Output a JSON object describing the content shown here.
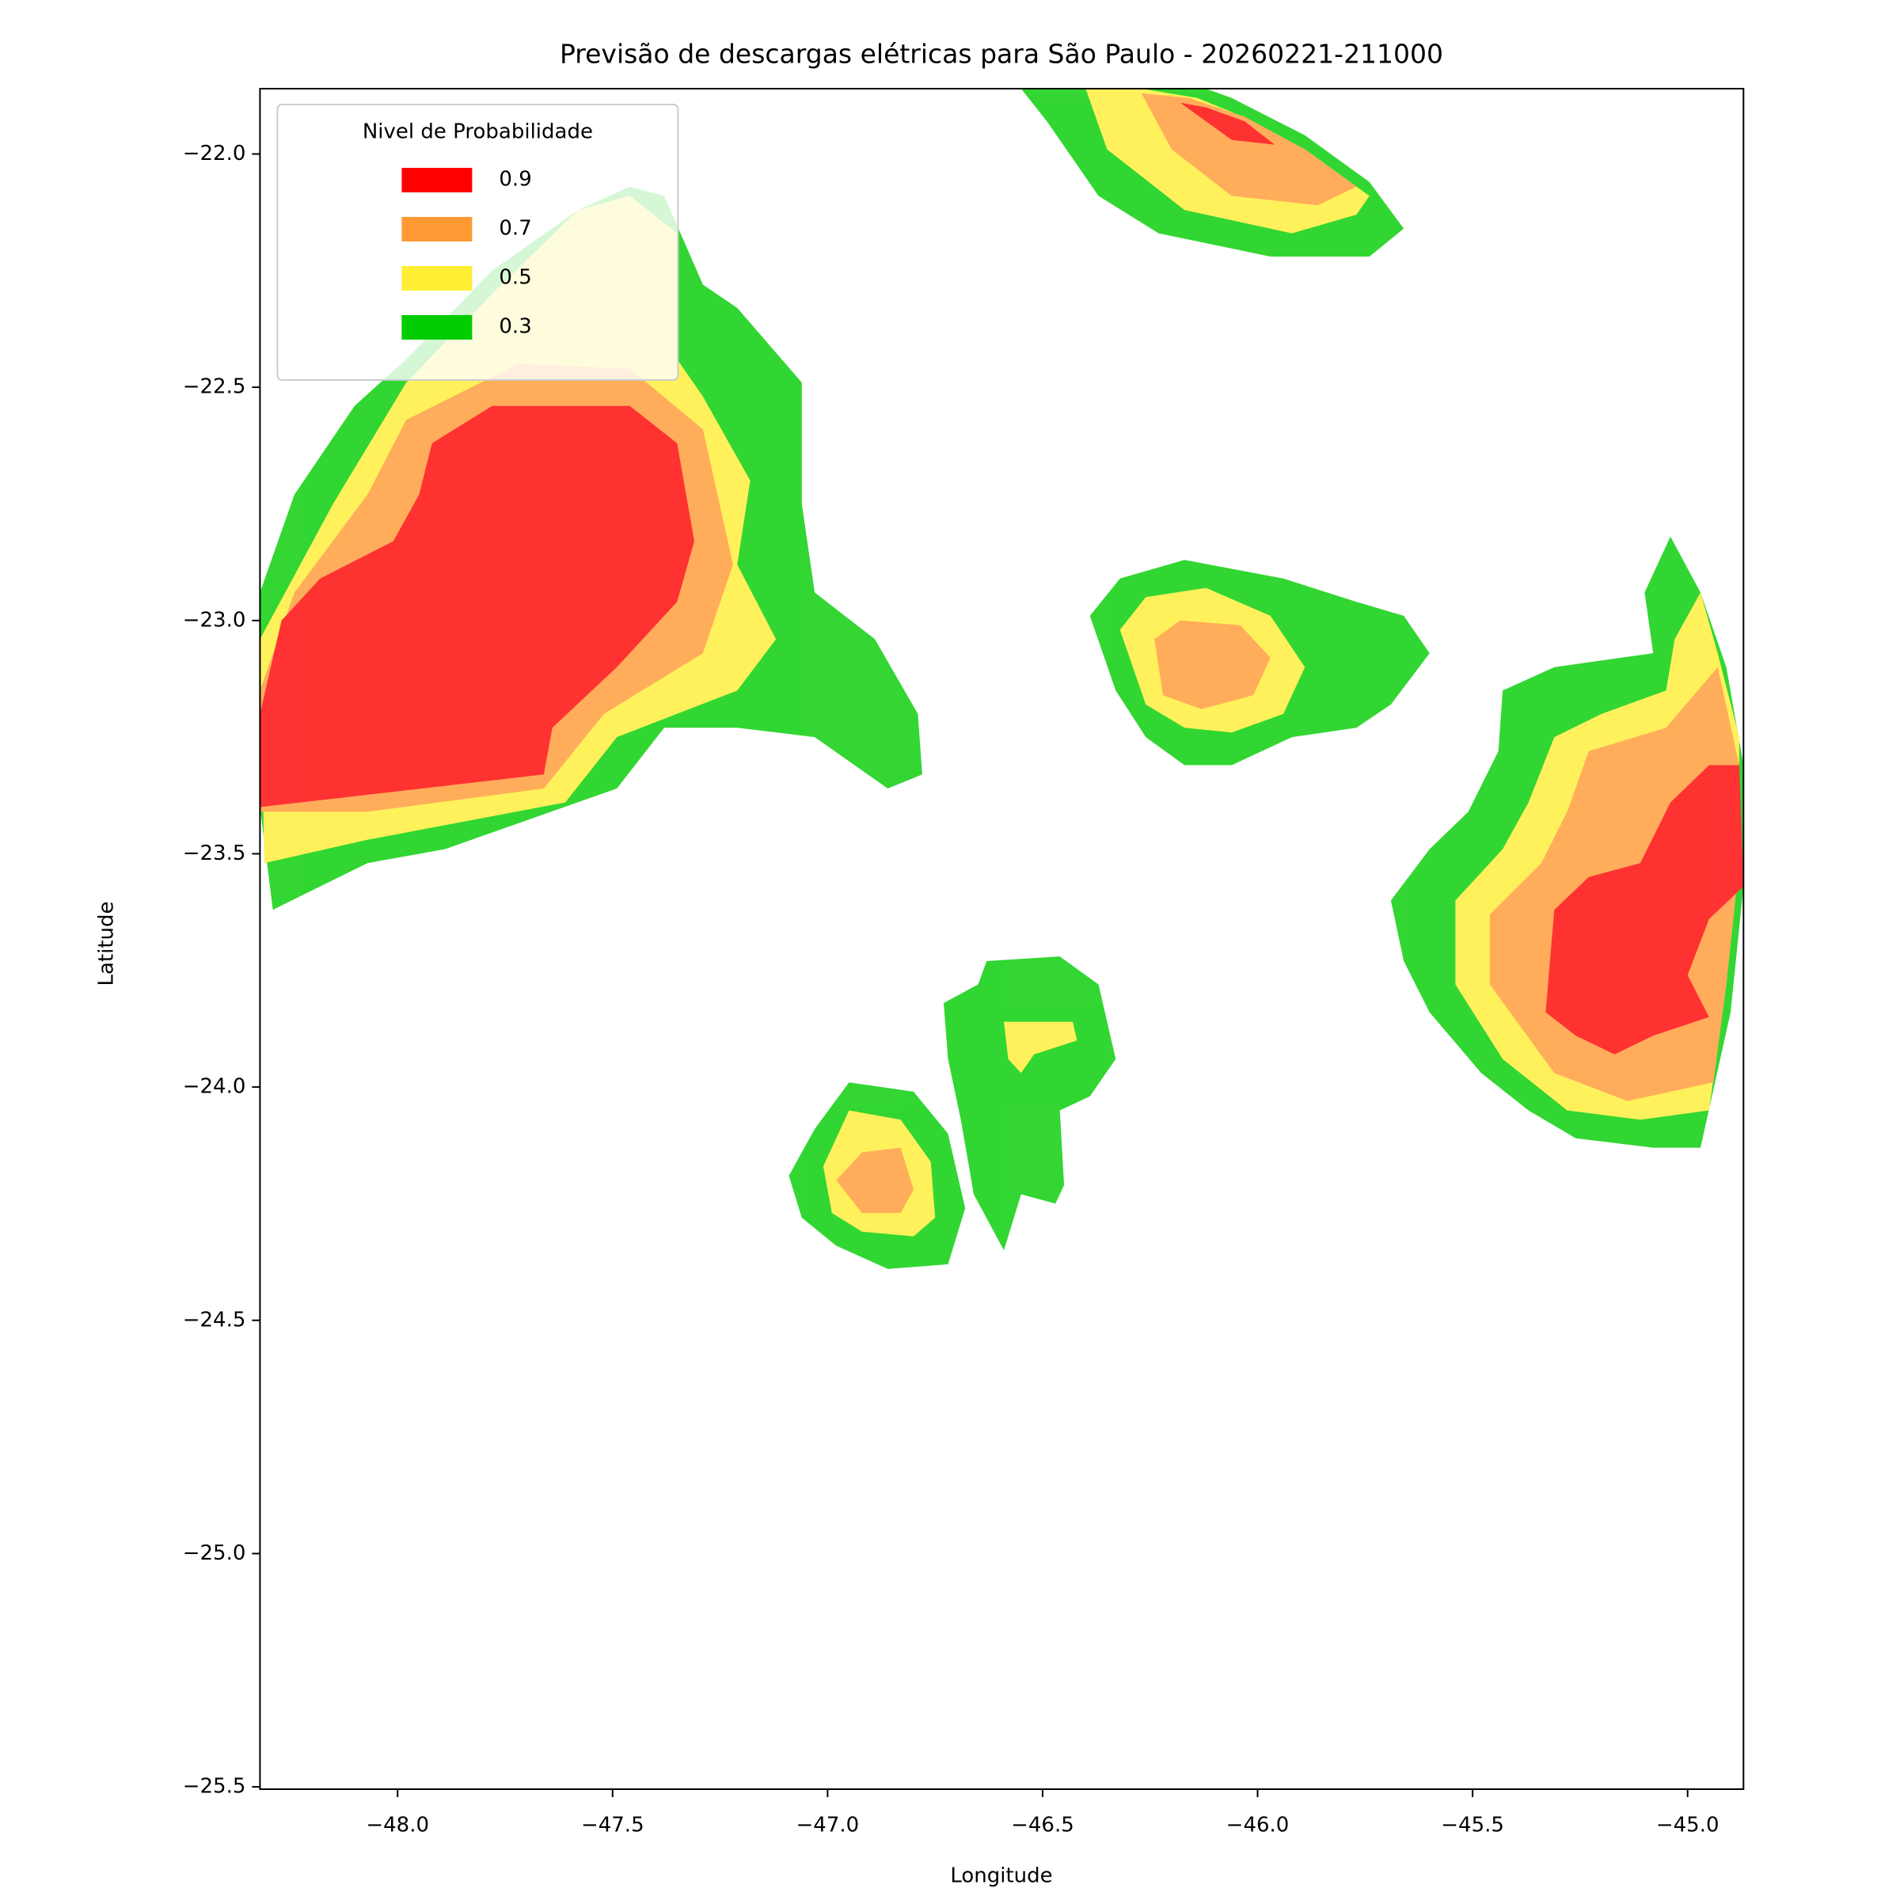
{
  "chart_data": {
    "type": "contour",
    "title": "Previsão de descargas elétricas para São Paulo - 20260221-211000",
    "xlabel": "Longitude",
    "ylabel": "Latitude",
    "xlim": [
      -48.32,
      -44.87
    ],
    "ylim": [
      -25.505,
      -21.86
    ],
    "xticks": [
      {
        "value": -48,
        "label": "−48.0"
      },
      {
        "value": -47.5,
        "label": "−47.5"
      },
      {
        "value": -47,
        "label": "−47.0"
      },
      {
        "value": -46.5,
        "label": "−46.5"
      },
      {
        "value": -46,
        "label": "−46.0"
      },
      {
        "value": -45.5,
        "label": "−45.5"
      },
      {
        "value": -45,
        "label": "−45.0"
      }
    ],
    "yticks": [
      {
        "value": -22,
        "label": "−22.0"
      },
      {
        "value": -22.5,
        "label": "−22.5"
      },
      {
        "value": -23,
        "label": "−23.0"
      },
      {
        "value": -23.5,
        "label": "−23.5"
      },
      {
        "value": -24,
        "label": "−24.0"
      },
      {
        "value": -24.5,
        "label": "−24.5"
      },
      {
        "value": -25,
        "label": "−25.0"
      },
      {
        "value": -25.5,
        "label": "−25.5"
      }
    ],
    "legend_title": "Nivel de Probabilidade",
    "legend_loc": "upper left",
    "alpha": 0.8,
    "series": [
      {
        "name": "0.9",
        "color": "#ff0000",
        "regions": [
          {
            "x": [
              -48.32,
              -47.66,
              -47.64,
              -47.49,
              -47.35,
              -47.31,
              -47.35,
              -47.46,
              -47.78,
              -47.92,
              -47.95,
              -48.01,
              -48.18,
              -48.27,
              -48.32
            ],
            "y": [
              -23.4,
              -23.33,
              -23.23,
              -23.1,
              -22.96,
              -22.83,
              -22.62,
              -22.54,
              -22.54,
              -22.62,
              -22.73,
              -22.83,
              -22.91,
              -23.0,
              -23.2
            ]
          },
          {
            "x": [
              -46.18,
              -46.06,
              -45.96,
              -46.03,
              -46.12
            ],
            "y": [
              -21.89,
              -21.97,
              -21.98,
              -21.93,
              -21.9
            ]
          },
          {
            "x": [
              -45.33,
              -45.31,
              -45.23,
              -45.11,
              -45.04,
              -44.95,
              -44.88,
              -44.87,
              -44.95,
              -45.0,
              -44.95,
              -45.08,
              -45.17,
              -45.26
            ],
            "y": [
              -23.84,
              -23.62,
              -23.55,
              -23.52,
              -23.39,
              -23.31,
              -23.31,
              -23.57,
              -23.64,
              -23.76,
              -23.85,
              -23.89,
              -23.93,
              -23.89
            ]
          }
        ]
      },
      {
        "name": "0.7",
        "color": "#ff9933",
        "regions": [
          {
            "x": [
              -48.32,
              -48.07,
              -47.66,
              -47.52,
              -47.29,
              -47.22,
              -47.29,
              -47.46,
              -47.72,
              -47.98,
              -48.07,
              -48.24,
              -48.32
            ],
            "y": [
              -23.41,
              -23.41,
              -23.36,
              -23.2,
              -23.07,
              -22.88,
              -22.59,
              -22.46,
              -22.45,
              -22.57,
              -22.73,
              -22.94,
              -23.15
            ]
          },
          {
            "x": [
              -46.27,
              -46.2,
              -46.06,
              -45.86,
              -45.77,
              -45.89,
              -46.03,
              -46.16
            ],
            "y": [
              -21.87,
              -21.99,
              -22.09,
              -22.11,
              -22.07,
              -21.99,
              -21.92,
              -21.88
            ]
          },
          {
            "x": [
              -46.24,
              -46.18,
              -46.04,
              -45.97,
              -46.01,
              -46.13,
              -46.22
            ],
            "y": [
              -23.04,
              -23.0,
              -23.01,
              -23.08,
              -23.16,
              -23.19,
              -23.16
            ]
          },
          {
            "x": [
              -45.46,
              -45.46,
              -45.34,
              -45.28,
              -45.23,
              -45.05,
              -44.93,
              -44.88,
              -44.88,
              -44.91,
              -44.94,
              -45.14,
              -45.31
            ],
            "y": [
              -23.78,
              -23.63,
              -23.52,
              -23.41,
              -23.28,
              -23.23,
              -23.1,
              -23.31,
              -23.52,
              -23.78,
              -23.99,
              -24.03,
              -23.97
            ]
          },
          {
            "x": [
              -46.98,
              -46.92,
              -46.83,
              -46.8,
              -46.83,
              -46.92
            ],
            "y": [
              -24.2,
              -24.14,
              -24.13,
              -24.22,
              -24.27,
              -24.27
            ]
          }
        ]
      },
      {
        "name": "0.5",
        "color": "#ffee33",
        "regions": [
          {
            "x": [
              -48.31,
              -48.07,
              -47.61,
              -47.49,
              -47.21,
              -47.12,
              -47.21,
              -47.18,
              -47.29,
              -47.35,
              -47.35,
              -47.46,
              -47.58,
              -47.78,
              -47.98,
              -48.15,
              -48.32
            ],
            "y": [
              -23.52,
              -23.47,
              -23.39,
              -23.25,
              -23.15,
              -23.04,
              -22.88,
              -22.7,
              -22.52,
              -22.44,
              -22.17,
              -22.09,
              -22.12,
              -22.3,
              -22.49,
              -22.75,
              -23.04
            ]
          },
          {
            "x": [
              -46.4,
              -46.35,
              -46.17,
              -45.92,
              -45.77,
              -45.74,
              -45.89,
              -46.06,
              -46.14,
              -46.27
            ],
            "y": [
              -21.86,
              -21.99,
              -22.12,
              -22.17,
              -22.13,
              -22.09,
              -21.99,
              -21.91,
              -21.88,
              -21.86
            ]
          },
          {
            "x": [
              -46.32,
              -46.26,
              -46.12,
              -45.97,
              -45.89,
              -45.94,
              -46.06,
              -46.17,
              -46.26
            ],
            "y": [
              -23.02,
              -22.95,
              -22.93,
              -22.99,
              -23.1,
              -23.2,
              -23.24,
              -23.23,
              -23.18
            ]
          },
          {
            "x": [
              -45.54,
              -45.54,
              -45.43,
              -45.37,
              -45.31,
              -45.2,
              -45.05,
              -45.03,
              -44.97,
              -44.93,
              -44.88,
              -44.88,
              -44.91,
              -44.95,
              -45.11,
              -45.28,
              -45.43
            ],
            "y": [
              -23.78,
              -23.6,
              -23.49,
              -23.39,
              -23.25,
              -23.2,
              -23.15,
              -23.04,
              -22.94,
              -23.07,
              -23.25,
              -23.52,
              -23.78,
              -24.05,
              -24.07,
              -24.05,
              -23.94
            ]
          },
          {
            "x": [
              -47.01,
              -46.95,
              -46.83,
              -46.76,
              -46.75,
              -46.8,
              -46.92,
              -46.99
            ],
            "y": [
              -24.17,
              -24.05,
              -24.07,
              -24.16,
              -24.28,
              -24.32,
              -24.31,
              -24.27
            ]
          },
          {
            "x": [
              -46.59,
              -46.43,
              -46.42,
              -46.52,
              -46.55,
              -46.58
            ],
            "y": [
              -23.86,
              -23.86,
              -23.9,
              -23.93,
              -23.97,
              -23.94
            ]
          }
        ]
      },
      {
        "name": "0.3",
        "color": "#00cc00",
        "regions": [
          {
            "x": [
              -48.32,
              -48.29,
              -48.07,
              -47.89,
              -47.49,
              -47.38,
              -47.21,
              -47.03,
              -46.86,
              -46.78,
              -46.79,
              -46.89,
              -47.03,
              -47.06,
              -47.06,
              -47.21,
              -47.29,
              -47.38,
              -47.46,
              -47.58,
              -47.78,
              -47.98,
              -48.1,
              -48.24,
              -48.32
            ],
            "y": [
              -23.4,
              -23.62,
              -23.52,
              -23.49,
              -23.36,
              -23.23,
              -23.23,
              -23.25,
              -23.36,
              -23.33,
              -23.2,
              -23.04,
              -22.94,
              -22.75,
              -22.49,
              -22.33,
              -22.28,
              -22.09,
              -22.07,
              -22.12,
              -22.25,
              -22.44,
              -22.54,
              -22.73,
              -22.94
            ]
          },
          {
            "x": [
              -46.55,
              -46.49,
              -46.37,
              -46.23,
              -45.97,
              -45.74,
              -45.66,
              -45.74,
              -45.89,
              -46.06,
              -46.12
            ],
            "y": [
              -21.86,
              -21.93,
              -22.09,
              -22.17,
              -22.22,
              -22.22,
              -22.16,
              -22.06,
              -21.96,
              -21.88,
              -21.86
            ]
          },
          {
            "x": [
              -46.39,
              -46.32,
              -46.17,
              -45.94,
              -45.77,
              -45.66,
              -45.6,
              -45.69,
              -45.77,
              -45.92,
              -46.06,
              -46.17,
              -46.26,
              -46.33
            ],
            "y": [
              -22.99,
              -22.91,
              -22.87,
              -22.91,
              -22.96,
              -22.99,
              -23.07,
              -23.18,
              -23.23,
              -23.25,
              -23.31,
              -23.31,
              -23.25,
              -23.15
            ]
          },
          {
            "x": [
              -45.69,
              -45.6,
              -45.51,
              -45.44,
              -45.43,
              -45.31,
              -45.08,
              -45.1,
              -45.04,
              -44.97,
              -44.91,
              -44.87,
              -44.87,
              -44.9,
              -44.97,
              -45.08,
              -45.26,
              -45.37,
              -45.48,
              -45.6,
              -45.66
            ],
            "y": [
              -23.6,
              -23.49,
              -23.41,
              -23.28,
              -23.15,
              -23.1,
              -23.07,
              -22.94,
              -22.82,
              -22.94,
              -23.1,
              -23.31,
              -23.57,
              -23.84,
              -24.13,
              -24.13,
              -24.11,
              -24.05,
              -23.97,
              -23.84,
              -23.73
            ]
          },
          {
            "x": [
              -47.09,
              -47.03,
              -46.95,
              -46.8,
              -46.72,
              -46.68,
              -46.72,
              -46.86,
              -46.98,
              -47.06
            ],
            "y": [
              -24.19,
              -24.09,
              -23.99,
              -24.01,
              -24.1,
              -24.26,
              -24.38,
              -24.39,
              -24.34,
              -24.28
            ]
          },
          {
            "x": [
              -46.73,
              -46.65,
              -46.63,
              -46.46,
              -46.37,
              -46.33,
              -46.39,
              -46.46,
              -46.45,
              -46.47,
              -46.55,
              -46.59,
              -46.66,
              -46.69,
              -46.72
            ],
            "y": [
              -23.82,
              -23.78,
              -23.73,
              -23.72,
              -23.78,
              -23.94,
              -24.02,
              -24.05,
              -24.21,
              -24.25,
              -24.23,
              -24.35,
              -24.23,
              -24.07,
              -23.94
            ]
          }
        ]
      }
    ]
  }
}
